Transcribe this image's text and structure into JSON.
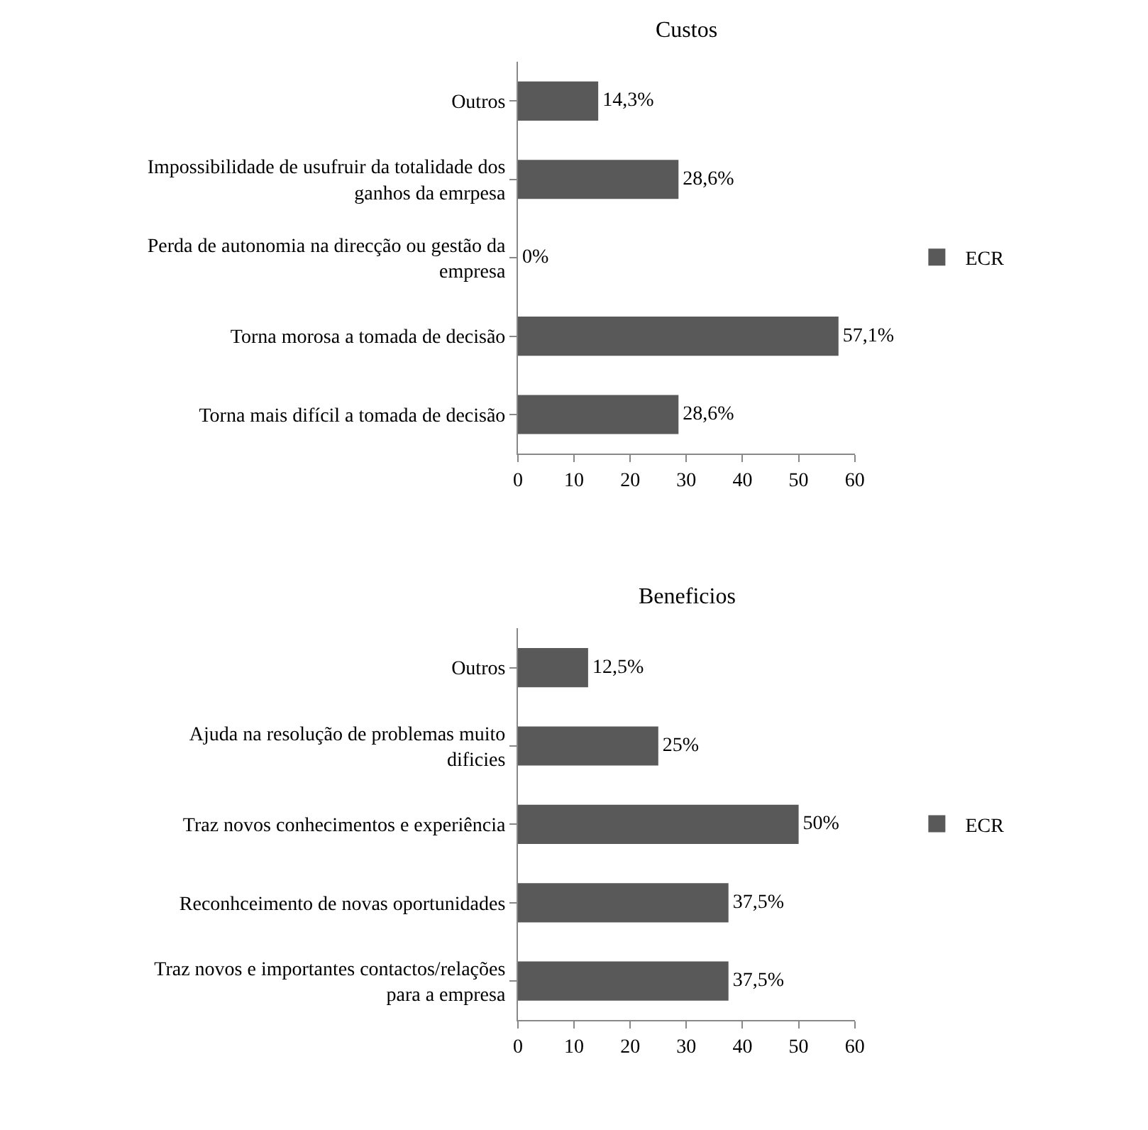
{
  "chart_data": [
    {
      "type": "bar",
      "orientation": "horizontal",
      "title": "Custos",
      "categories": [
        "Outros",
        "Impossibilidade de usufruir da totalidade dos ganhos da emrpesa",
        "Perda de autonomia na direcção ou gestão da empresa",
        "Torna morosa a tomada de decisão",
        "Torna mais difícil a tomada de decisão"
      ],
      "series": [
        {
          "name": "ECR",
          "color": "#595959",
          "values": [
            14.3,
            28.6,
            0,
            57.1,
            28.6
          ],
          "value_labels": [
            "14,3%",
            "28,6%",
            "0%",
            "57,1%",
            "28,6%"
          ]
        }
      ],
      "xlim": [
        0,
        60
      ],
      "xticks": [
        0,
        10,
        20,
        30,
        40,
        50,
        60
      ],
      "legend": "right"
    },
    {
      "type": "bar",
      "orientation": "horizontal",
      "title": "Beneficios",
      "categories": [
        "Outros",
        "Ajuda na resolução de problemas muito dificies",
        "Traz novos conhecimentos e experiência",
        "Reconhceimento de novas oportunidades",
        "Traz novos e importantes contactos/relações para a empresa"
      ],
      "series": [
        {
          "name": "ECR",
          "color": "#595959",
          "values": [
            12.5,
            25,
            50,
            37.5,
            37.5
          ],
          "value_labels": [
            "12,5%",
            "25%",
            "50%",
            "37,5%",
            "37,5%"
          ]
        }
      ],
      "xlim": [
        0,
        60
      ],
      "xticks": [
        0,
        10,
        20,
        30,
        40,
        50,
        60
      ],
      "legend": "right"
    }
  ]
}
